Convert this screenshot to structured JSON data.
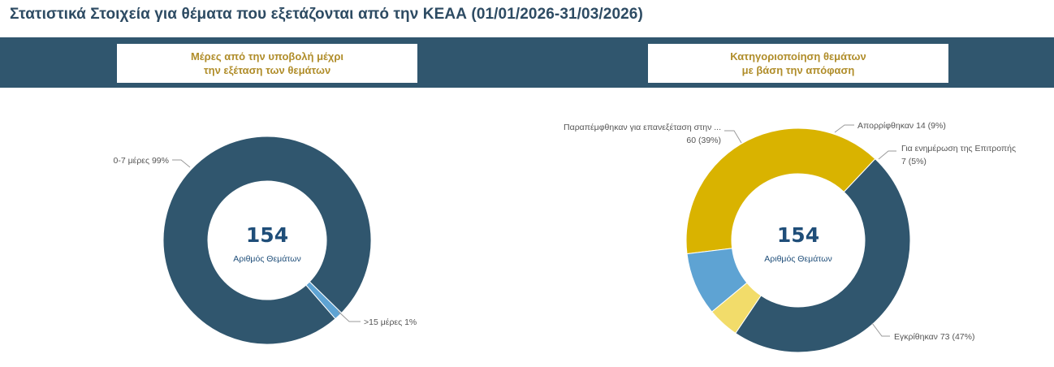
{
  "page": {
    "title": "Στατιστικά Στοιχεία για θέματα που εξετάζονται από την ΚΕΑΑ (01/01/2026-31/03/2026)"
  },
  "colors": {
    "band": "#30566e",
    "header_text": "#b08d2a",
    "title": "#2d4b63"
  },
  "chart_data": [
    {
      "type": "pie",
      "variant": "donut",
      "title_lines": [
        "Μέρες από την υποβολή μέχρι",
        "την εξέταση των θεμάτων"
      ],
      "center_value": "154",
      "center_label": "Αριθμός Θεμάτων",
      "slices": [
        {
          "name": "0-7 μέρες",
          "value": 152,
          "label": "0-7 μέρες 99%",
          "color": "#30566e"
        },
        {
          "name": ">15 μέρες",
          "value": 2,
          "label": ">15 μέρες 1%",
          "color": "#5ea3d3"
        }
      ]
    },
    {
      "type": "pie",
      "variant": "donut",
      "title_lines": [
        "Κατηγοριοποίηση θεμάτων",
        "με βάση την απόφαση"
      ],
      "center_value": "154",
      "center_label": "Αριθμός Θεμάτων",
      "slices": [
        {
          "name": "Εγκρίθηκαν",
          "value": 73,
          "label_lines": [
            "Εγκρίθηκαν 73 (47%)"
          ],
          "color": "#30566e"
        },
        {
          "name": "Παραπέμφθηκαν για επανεξέταση στην ...",
          "value": 60,
          "label_lines": [
            "Παραπέμφθηκαν για επανεξέταση στην ...",
            "60 (39%)"
          ],
          "color": "#d9b300"
        },
        {
          "name": "Απορρίφθηκαν",
          "value": 14,
          "label_lines": [
            "Απορρίφθηκαν 14 (9%)"
          ],
          "color": "#5ea3d3"
        },
        {
          "name": "Για ενημέρωση της Επιτροπής",
          "value": 7,
          "label_lines": [
            "Για ενημέρωση της Επιτροπής",
            "7 (5%)"
          ],
          "color": "#f2dc6a"
        }
      ]
    }
  ]
}
